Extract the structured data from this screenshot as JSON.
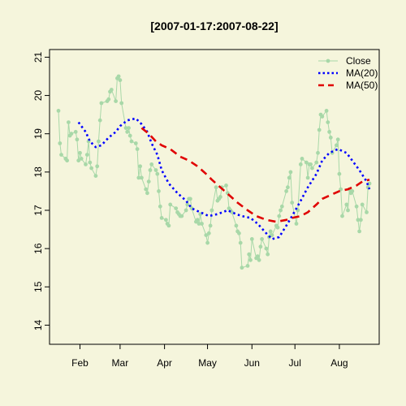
{
  "chart_data": {
    "type": "line",
    "title": "[2007-01-17:2007-08-22]",
    "xlabel": "",
    "ylabel": "",
    "x_range": [
      "2007-01-17",
      "2007-08-22"
    ],
    "ylim": [
      13.5,
      21.2
    ],
    "y_ticks": [
      14,
      15,
      16,
      17,
      18,
      19,
      20,
      21
    ],
    "x_ticks": [
      {
        "date": "2007-02-01",
        "label": "Feb"
      },
      {
        "date": "2007-03-01",
        "label": "Mar"
      },
      {
        "date": "2007-04-01",
        "label": "Apr"
      },
      {
        "date": "2007-05-01",
        "label": "May"
      },
      {
        "date": "2007-06-01",
        "label": "Jun"
      },
      {
        "date": "2007-07-01",
        "label": "Jul"
      },
      {
        "date": "2007-08-01",
        "label": "Aug"
      }
    ],
    "grid": false,
    "legend_position": "top-right",
    "colors": {
      "close": "#a8d8a8",
      "ma20": "#0000ff",
      "ma50": "#e00000",
      "background": "#f5f5dc"
    },
    "series": [
      {
        "name": "Close",
        "style": "line-points",
        "points": [
          [
            "2007-01-17",
            19.6
          ],
          [
            "2007-01-18",
            18.75
          ],
          [
            "2007-01-19",
            18.45
          ],
          [
            "2007-01-22",
            18.35
          ],
          [
            "2007-01-23",
            18.3
          ],
          [
            "2007-01-24",
            19.3
          ],
          [
            "2007-01-25",
            18.95
          ],
          [
            "2007-01-26",
            19.0
          ],
          [
            "2007-01-29",
            19.05
          ],
          [
            "2007-01-30",
            18.85
          ],
          [
            "2007-01-31",
            18.3
          ],
          [
            "2007-02-01",
            18.5
          ],
          [
            "2007-02-02",
            18.35
          ],
          [
            "2007-02-05",
            18.2
          ],
          [
            "2007-02-06",
            18.45
          ],
          [
            "2007-02-07",
            18.8
          ],
          [
            "2007-02-08",
            18.25
          ],
          [
            "2007-02-09",
            18.1
          ],
          [
            "2007-02-12",
            17.9
          ],
          [
            "2007-02-13",
            18.15
          ],
          [
            "2007-02-14",
            18.8
          ],
          [
            "2007-02-15",
            19.35
          ],
          [
            "2007-02-16",
            19.8
          ],
          [
            "2007-02-20",
            19.85
          ],
          [
            "2007-02-21",
            19.9
          ],
          [
            "2007-02-22",
            20.1
          ],
          [
            "2007-02-23",
            20.15
          ],
          [
            "2007-02-26",
            19.85
          ],
          [
            "2007-02-27",
            20.45
          ],
          [
            "2007-02-28",
            20.5
          ],
          [
            "2007-03-01",
            20.4
          ],
          [
            "2007-03-02",
            19.8
          ],
          [
            "2007-03-05",
            19.15
          ],
          [
            "2007-03-06",
            19.05
          ],
          [
            "2007-03-07",
            19.15
          ],
          [
            "2007-03-08",
            18.95
          ],
          [
            "2007-03-09",
            18.8
          ],
          [
            "2007-03-12",
            18.75
          ],
          [
            "2007-03-13",
            18.6
          ],
          [
            "2007-03-14",
            17.85
          ],
          [
            "2007-03-15",
            18.15
          ],
          [
            "2007-03-16",
            17.85
          ],
          [
            "2007-03-19",
            17.55
          ],
          [
            "2007-03-20",
            17.45
          ],
          [
            "2007-03-21",
            17.75
          ],
          [
            "2007-03-22",
            18.05
          ],
          [
            "2007-03-23",
            18.2
          ],
          [
            "2007-03-26",
            18.05
          ],
          [
            "2007-03-27",
            17.95
          ],
          [
            "2007-03-28",
            17.5
          ],
          [
            "2007-03-29",
            17.1
          ],
          [
            "2007-03-30",
            16.8
          ],
          [
            "2007-04-02",
            16.75
          ],
          [
            "2007-04-03",
            16.65
          ],
          [
            "2007-04-04",
            16.6
          ],
          [
            "2007-04-05",
            17.15
          ],
          [
            "2007-04-09",
            17.05
          ],
          [
            "2007-04-10",
            16.95
          ],
          [
            "2007-04-11",
            16.9
          ],
          [
            "2007-04-12",
            16.85
          ],
          [
            "2007-04-13",
            16.85
          ],
          [
            "2007-04-16",
            17.0
          ],
          [
            "2007-04-17",
            17.15
          ],
          [
            "2007-04-18",
            17.3
          ],
          [
            "2007-04-19",
            17.3
          ],
          [
            "2007-04-20",
            17.05
          ],
          [
            "2007-04-23",
            16.7
          ],
          [
            "2007-04-24",
            16.75
          ],
          [
            "2007-04-25",
            16.65
          ],
          [
            "2007-04-26",
            16.9
          ],
          [
            "2007-04-27",
            16.65
          ],
          [
            "2007-04-30",
            16.35
          ],
          [
            "2007-05-01",
            16.15
          ],
          [
            "2007-05-02",
            16.4
          ],
          [
            "2007-05-03",
            16.6
          ],
          [
            "2007-05-04",
            17.0
          ],
          [
            "2007-05-07",
            17.6
          ],
          [
            "2007-05-08",
            17.25
          ],
          [
            "2007-05-09",
            17.3
          ],
          [
            "2007-05-10",
            17.35
          ],
          [
            "2007-05-11",
            17.6
          ],
          [
            "2007-05-14",
            17.65
          ],
          [
            "2007-05-15",
            17.45
          ],
          [
            "2007-05-16",
            17.05
          ],
          [
            "2007-05-17",
            17.0
          ],
          [
            "2007-05-18",
            16.95
          ],
          [
            "2007-05-21",
            16.6
          ],
          [
            "2007-05-22",
            16.45
          ],
          [
            "2007-05-23",
            16.4
          ],
          [
            "2007-05-24",
            16.15
          ],
          [
            "2007-05-25",
            15.5
          ],
          [
            "2007-05-29",
            15.55
          ],
          [
            "2007-05-30",
            15.85
          ],
          [
            "2007-05-31",
            15.7
          ],
          [
            "2007-06-01",
            16.25
          ],
          [
            "2007-06-04",
            15.75
          ],
          [
            "2007-06-05",
            15.8
          ],
          [
            "2007-06-06",
            15.7
          ],
          [
            "2007-06-07",
            16.05
          ],
          [
            "2007-06-08",
            16.25
          ],
          [
            "2007-06-11",
            16.0
          ],
          [
            "2007-06-12",
            15.85
          ],
          [
            "2007-06-13",
            16.3
          ],
          [
            "2007-06-14",
            16.45
          ],
          [
            "2007-06-15",
            16.35
          ],
          [
            "2007-06-18",
            16.6
          ],
          [
            "2007-06-19",
            16.55
          ],
          [
            "2007-06-20",
            16.85
          ],
          [
            "2007-06-21",
            17.0
          ],
          [
            "2007-06-22",
            17.1
          ],
          [
            "2007-06-25",
            17.5
          ],
          [
            "2007-06-26",
            17.6
          ],
          [
            "2007-06-27",
            17.85
          ],
          [
            "2007-06-28",
            18.0
          ],
          [
            "2007-06-29",
            17.2
          ],
          [
            "2007-07-02",
            16.65
          ],
          [
            "2007-07-03",
            17.0
          ],
          [
            "2007-07-05",
            18.2
          ],
          [
            "2007-07-06",
            18.35
          ],
          [
            "2007-07-09",
            18.25
          ],
          [
            "2007-07-10",
            17.85
          ],
          [
            "2007-07-11",
            18.2
          ],
          [
            "2007-07-12",
            18.2
          ],
          [
            "2007-07-13",
            18.1
          ],
          [
            "2007-07-16",
            18.25
          ],
          [
            "2007-07-17",
            18.5
          ],
          [
            "2007-07-18",
            19.1
          ],
          [
            "2007-07-19",
            19.5
          ],
          [
            "2007-07-20",
            19.45
          ],
          [
            "2007-07-23",
            19.6
          ],
          [
            "2007-07-24",
            19.3
          ],
          [
            "2007-07-25",
            19.05
          ],
          [
            "2007-07-26",
            18.9
          ],
          [
            "2007-07-27",
            18.5
          ],
          [
            "2007-07-30",
            18.7
          ],
          [
            "2007-07-31",
            18.85
          ],
          [
            "2007-08-01",
            17.95
          ],
          [
            "2007-08-02",
            17.55
          ],
          [
            "2007-08-03",
            16.85
          ],
          [
            "2007-08-06",
            17.15
          ],
          [
            "2007-08-07",
            17.0
          ],
          [
            "2007-08-08",
            17.55
          ],
          [
            "2007-08-09",
            17.45
          ],
          [
            "2007-08-10",
            17.5
          ],
          [
            "2007-08-13",
            17.1
          ],
          [
            "2007-08-14",
            16.75
          ],
          [
            "2007-08-15",
            16.45
          ],
          [
            "2007-08-16",
            16.75
          ],
          [
            "2007-08-17",
            17.15
          ],
          [
            "2007-08-20",
            16.95
          ],
          [
            "2007-08-21",
            17.6
          ],
          [
            "2007-08-22",
            17.7
          ]
        ]
      },
      {
        "name": "MA(20)",
        "style": "dotted",
        "points": [
          [
            "2007-01-31",
            19.3
          ],
          [
            "2007-02-05",
            19.05
          ],
          [
            "2007-02-08",
            18.8
          ],
          [
            "2007-02-12",
            18.65
          ],
          [
            "2007-02-16",
            18.7
          ],
          [
            "2007-02-21",
            18.9
          ],
          [
            "2007-02-26",
            19.05
          ],
          [
            "2007-03-01",
            19.2
          ],
          [
            "2007-03-06",
            19.35
          ],
          [
            "2007-03-12",
            19.4
          ],
          [
            "2007-03-16",
            19.25
          ],
          [
            "2007-03-20",
            19.05
          ],
          [
            "2007-03-23",
            18.75
          ],
          [
            "2007-03-27",
            18.45
          ],
          [
            "2007-03-30",
            18.05
          ],
          [
            "2007-04-04",
            17.7
          ],
          [
            "2007-04-10",
            17.45
          ],
          [
            "2007-04-16",
            17.25
          ],
          [
            "2007-04-20",
            17.05
          ],
          [
            "2007-04-26",
            16.95
          ],
          [
            "2007-05-02",
            16.85
          ],
          [
            "2007-05-08",
            16.9
          ],
          [
            "2007-05-15",
            17.0
          ],
          [
            "2007-05-21",
            16.9
          ],
          [
            "2007-05-25",
            16.85
          ],
          [
            "2007-05-31",
            16.8
          ],
          [
            "2007-06-05",
            16.65
          ],
          [
            "2007-06-11",
            16.4
          ],
          [
            "2007-06-15",
            16.25
          ],
          [
            "2007-06-20",
            16.3
          ],
          [
            "2007-06-25",
            16.6
          ],
          [
            "2007-06-29",
            16.85
          ],
          [
            "2007-07-05",
            17.25
          ],
          [
            "2007-07-10",
            17.6
          ],
          [
            "2007-07-16",
            17.95
          ],
          [
            "2007-07-20",
            18.3
          ],
          [
            "2007-07-25",
            18.5
          ],
          [
            "2007-07-31",
            18.6
          ],
          [
            "2007-08-06",
            18.5
          ],
          [
            "2007-08-10",
            18.3
          ],
          [
            "2007-08-15",
            18.05
          ],
          [
            "2007-08-20",
            17.75
          ],
          [
            "2007-08-22",
            17.55
          ]
        ]
      },
      {
        "name": "MA(50)",
        "style": "dashed",
        "points": [
          [
            "2007-03-16",
            19.15
          ],
          [
            "2007-03-21",
            19.0
          ],
          [
            "2007-03-26",
            18.8
          ],
          [
            "2007-03-30",
            18.7
          ],
          [
            "2007-04-05",
            18.6
          ],
          [
            "2007-04-12",
            18.4
          ],
          [
            "2007-04-18",
            18.3
          ],
          [
            "2007-04-24",
            18.15
          ],
          [
            "2007-04-30",
            17.95
          ],
          [
            "2007-05-04",
            17.8
          ],
          [
            "2007-05-10",
            17.6
          ],
          [
            "2007-05-16",
            17.4
          ],
          [
            "2007-05-22",
            17.2
          ],
          [
            "2007-05-29",
            17.0
          ],
          [
            "2007-06-04",
            16.85
          ],
          [
            "2007-06-11",
            16.75
          ],
          [
            "2007-06-18",
            16.7
          ],
          [
            "2007-06-25",
            16.75
          ],
          [
            "2007-06-29",
            16.8
          ],
          [
            "2007-07-05",
            16.85
          ],
          [
            "2007-07-10",
            16.95
          ],
          [
            "2007-07-16",
            17.15
          ],
          [
            "2007-07-20",
            17.3
          ],
          [
            "2007-07-26",
            17.4
          ],
          [
            "2007-08-01",
            17.5
          ],
          [
            "2007-08-07",
            17.55
          ],
          [
            "2007-08-13",
            17.65
          ],
          [
            "2007-08-17",
            17.75
          ],
          [
            "2007-08-22",
            17.8
          ]
        ]
      }
    ]
  }
}
